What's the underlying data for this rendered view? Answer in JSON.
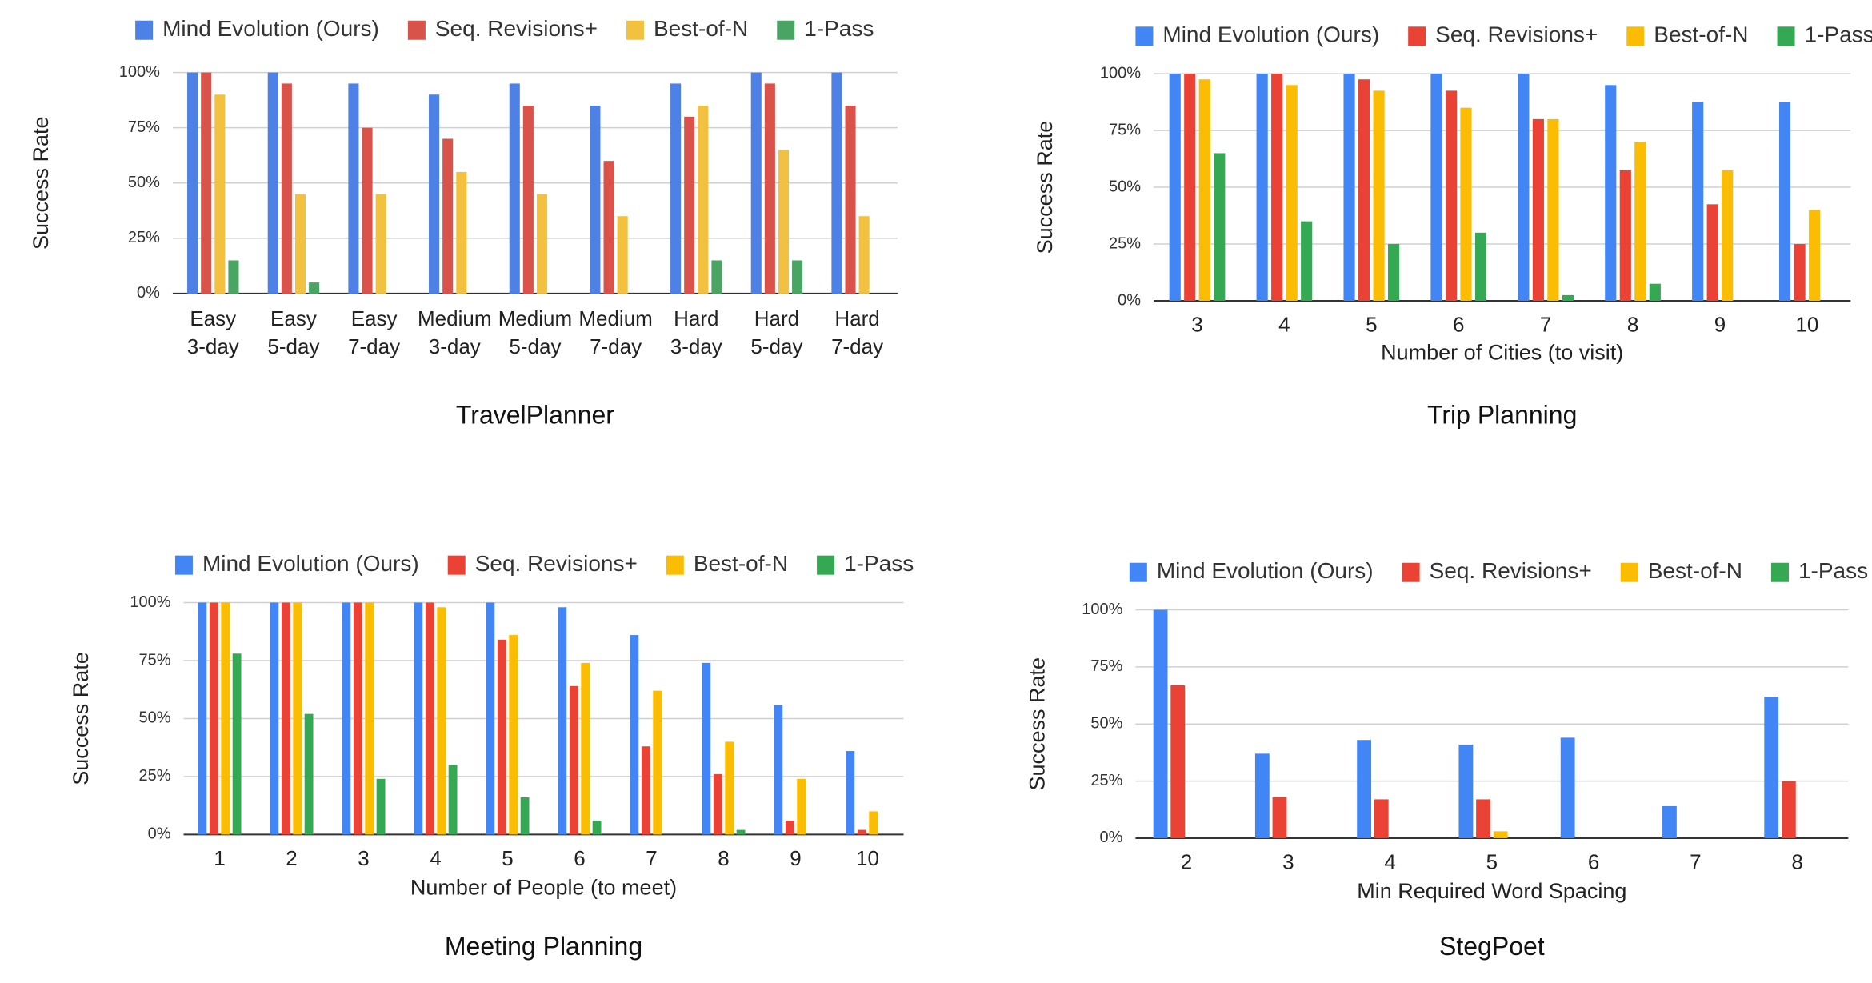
{
  "chart_data": [
    {
      "type": "bar",
      "title": "TravelPlanner",
      "y_label": "Success Rate",
      "categories": [
        [
          "Easy",
          "3-day"
        ],
        [
          "Easy",
          "5-day"
        ],
        [
          "Easy",
          "7-day"
        ],
        [
          "Medium",
          "3-day"
        ],
        [
          "Medium",
          "5-day"
        ],
        [
          "Medium",
          "7-day"
        ],
        [
          "Hard",
          "3-day"
        ],
        [
          "Hard",
          "5-day"
        ],
        [
          "Hard",
          "7-day"
        ]
      ],
      "series": [
        {
          "name": "Mind Evolution (Ours)",
          "color": "#4e81e6",
          "values": [
            100,
            100,
            95,
            90,
            95,
            85,
            95,
            100,
            100
          ]
        },
        {
          "name": "Seq. Revisions+",
          "color": "#d9534a",
          "values": [
            100,
            95,
            75,
            70,
            85,
            60,
            80,
            95,
            85
          ]
        },
        {
          "name": "Best-of-N",
          "color": "#f2c13f",
          "values": [
            90,
            45,
            45,
            55,
            45,
            35,
            85,
            65,
            35
          ]
        },
        {
          "name": "1-Pass",
          "color": "#4aa564",
          "values": [
            15,
            5,
            0,
            0,
            0,
            0,
            15,
            15,
            0
          ]
        }
      ],
      "ylim": [
        0,
        100
      ],
      "yticks": [
        {
          "value": 0,
          "label": "0%"
        },
        {
          "value": 25,
          "label": "25%"
        },
        {
          "value": 50,
          "label": "50%"
        },
        {
          "value": 75,
          "label": "75%"
        },
        {
          "value": 100,
          "label": "100%"
        }
      ],
      "grid": true
    },
    {
      "type": "bar",
      "title": "Trip Planning",
      "x_label": "Number of Cities (to visit)",
      "y_label": "Success Rate",
      "categories": [
        [
          "3"
        ],
        [
          "4"
        ],
        [
          "5"
        ],
        [
          "6"
        ],
        [
          "7"
        ],
        [
          "8"
        ],
        [
          "9"
        ],
        [
          "10"
        ]
      ],
      "series": [
        {
          "name": "Mind Evolution (Ours)",
          "color": "#4285f4",
          "values": [
            100,
            100,
            100,
            100,
            100,
            95,
            87.5,
            87.5
          ]
        },
        {
          "name": "Seq. Revisions+",
          "color": "#ea4335",
          "values": [
            100,
            100,
            97.5,
            92.5,
            80,
            57.5,
            42.5,
            25
          ]
        },
        {
          "name": "Best-of-N",
          "color": "#fbbc04",
          "values": [
            97.5,
            95,
            92.5,
            85,
            80,
            70,
            57.5,
            40
          ]
        },
        {
          "name": "1-Pass",
          "color": "#34a853",
          "values": [
            65,
            35,
            25,
            30,
            2.5,
            7.5,
            0,
            0
          ]
        }
      ],
      "ylim": [
        0,
        100
      ],
      "yticks": [
        {
          "value": 0,
          "label": "0%"
        },
        {
          "value": 25,
          "label": "25%"
        },
        {
          "value": 50,
          "label": "50%"
        },
        {
          "value": 75,
          "label": "75%"
        },
        {
          "value": 100,
          "label": "100%"
        }
      ],
      "grid": true
    },
    {
      "type": "bar",
      "title": "Meeting Planning",
      "x_label": "Number of People (to meet)",
      "y_label": "Success Rate",
      "categories": [
        [
          "1"
        ],
        [
          "2"
        ],
        [
          "3"
        ],
        [
          "4"
        ],
        [
          "5"
        ],
        [
          "6"
        ],
        [
          "7"
        ],
        [
          "8"
        ],
        [
          "9"
        ],
        [
          "10"
        ]
      ],
      "series": [
        {
          "name": "Mind Evolution (Ours)",
          "color": "#4285f4",
          "values": [
            100,
            100,
            100,
            100,
            100,
            98,
            86,
            74,
            56,
            36
          ]
        },
        {
          "name": "Seq. Revisions+",
          "color": "#ea4335",
          "values": [
            100,
            100,
            100,
            100,
            84,
            64,
            38,
            26,
            6,
            2
          ]
        },
        {
          "name": "Best-of-N",
          "color": "#fbbc04",
          "values": [
            100,
            100,
            100,
            98,
            86,
            74,
            62,
            40,
            24,
            10
          ]
        },
        {
          "name": "1-Pass",
          "color": "#34a853",
          "values": [
            78,
            52,
            24,
            30,
            16,
            6,
            0,
            2,
            0,
            0
          ]
        }
      ],
      "ylim": [
        0,
        100
      ],
      "yticks": [
        {
          "value": 0,
          "label": "0%"
        },
        {
          "value": 25,
          "label": "25%"
        },
        {
          "value": 50,
          "label": "50%"
        },
        {
          "value": 75,
          "label": "75%"
        },
        {
          "value": 100,
          "label": "100%"
        }
      ],
      "grid": true
    },
    {
      "type": "bar",
      "title": "StegPoet",
      "x_label": "Min Required Word Spacing",
      "y_label": "Success Rate",
      "categories": [
        [
          "2"
        ],
        [
          "3"
        ],
        [
          "4"
        ],
        [
          "5"
        ],
        [
          "6"
        ],
        [
          "7"
        ],
        [
          "8"
        ]
      ],
      "series": [
        {
          "name": "Mind Evolution (Ours)",
          "color": "#4285f4",
          "values": [
            100,
            37,
            43,
            41,
            44,
            14,
            62
          ]
        },
        {
          "name": "Seq. Revisions+",
          "color": "#ea4335",
          "values": [
            67,
            18,
            17,
            17,
            0,
            0,
            25
          ]
        },
        {
          "name": "Best-of-N",
          "color": "#fbbc04",
          "values": [
            0,
            0,
            0,
            3,
            0,
            0,
            0
          ]
        },
        {
          "name": "1-Pass",
          "color": "#34a853",
          "values": [
            0,
            0,
            0,
            0,
            0,
            0,
            0
          ]
        }
      ],
      "ylim": [
        0,
        100
      ],
      "yticks": [
        {
          "value": 0,
          "label": "0%"
        },
        {
          "value": 25,
          "label": "25%"
        },
        {
          "value": 50,
          "label": "50%"
        },
        {
          "value": 75,
          "label": "75%"
        },
        {
          "value": 100,
          "label": "100%"
        }
      ],
      "grid": true
    }
  ]
}
